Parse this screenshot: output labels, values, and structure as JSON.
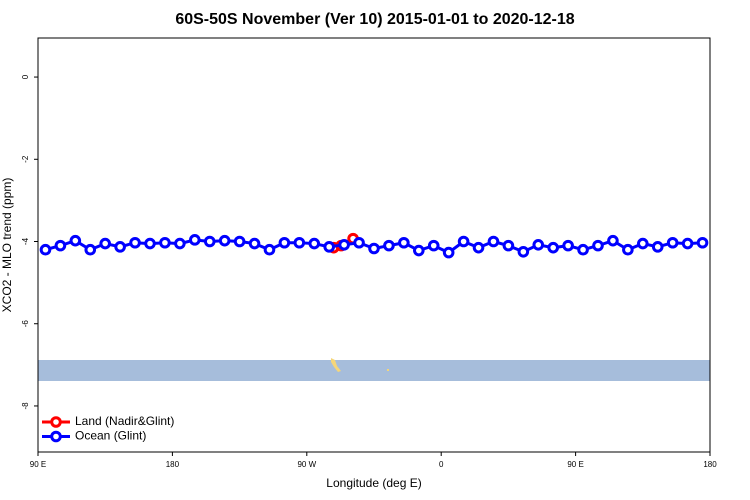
{
  "chart_data": {
    "type": "line",
    "title": "60S-50S November (Ver 10)   2015-01-01 to 2020-12-18",
    "x_label": "Longitude (deg E)",
    "y_label": "XCO2 - MLO trend (ppm)",
    "xlim": [
      90,
      540
    ],
    "ylim": [
      -9.12,
      0.95
    ],
    "xticks": [
      {
        "value": 90,
        "label": "90 E"
      },
      {
        "value": 180,
        "label": "180"
      },
      {
        "value": 270,
        "label": "90 W"
      },
      {
        "value": 360,
        "label": "0"
      },
      {
        "value": 450,
        "label": "90 E"
      },
      {
        "value": 540,
        "label": "180"
      }
    ],
    "yticks": [
      0,
      -2,
      -4,
      -6,
      -8
    ],
    "legend": "bottom-left",
    "series": [
      {
        "name": "Land (Nadir&Glint)",
        "color": "#ff0000",
        "x": [
          288,
          293,
          301
        ],
        "values": [
          -4.15,
          -4.1,
          -3.93
        ]
      },
      {
        "name": "Ocean (Glint)",
        "color": "#0000ff",
        "x": [
          95,
          105,
          115,
          125,
          135,
          145,
          155,
          165,
          175,
          185,
          195,
          205,
          215,
          225,
          235,
          245,
          255,
          265,
          275,
          285,
          295,
          305,
          315,
          325,
          335,
          345,
          355,
          365,
          375,
          385,
          395,
          405,
          415,
          425,
          435,
          445,
          455,
          465,
          475,
          485,
          495,
          505,
          515,
          525,
          535
        ],
        "values": [
          -4.2,
          -4.1,
          -3.98,
          -4.2,
          -4.05,
          -4.13,
          -4.03,
          -4.05,
          -4.03,
          -4.05,
          -3.96,
          -4.0,
          -3.98,
          -4.0,
          -4.05,
          -4.2,
          -4.03,
          -4.03,
          -4.05,
          -4.13,
          -4.08,
          -4.03,
          -4.17,
          -4.1,
          -4.03,
          -4.22,
          -4.1,
          -4.27,
          -4.0,
          -4.15,
          -4.0,
          -4.1,
          -4.25,
          -4.08,
          -4.15,
          -4.1,
          -4.2,
          -4.1,
          -3.98,
          -4.2,
          -4.05,
          -4.13,
          -4.03,
          -4.05,
          -4.03
        ]
      }
    ]
  }
}
